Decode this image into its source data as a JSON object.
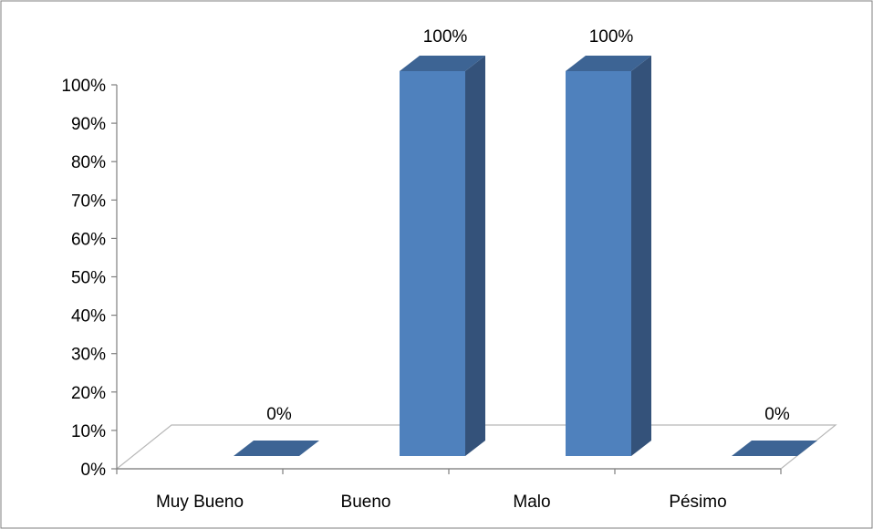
{
  "chart_data": {
    "type": "bar",
    "categories": [
      "Muy Bueno",
      "Bueno",
      "Malo",
      "Pésimo"
    ],
    "values": [
      0,
      100,
      100,
      0
    ],
    "data_labels": [
      "0%",
      "100%",
      "100%",
      "0%"
    ],
    "y_ticks": [
      "0%",
      "10%",
      "20%",
      "30%",
      "40%",
      "50%",
      "60%",
      "70%",
      "80%",
      "90%",
      "100%"
    ],
    "ylim": [
      0,
      100
    ],
    "title": "",
    "xlabel": "",
    "ylabel": "",
    "grid": false,
    "legend": "none",
    "style": "3d-column",
    "colors": {
      "bar_front": "#4f81bd",
      "bar_side": "#34527a",
      "bar_top": "#3d6494",
      "floor_stroke": "#b8b8b8",
      "frame_stroke": "#7f7f7f"
    }
  }
}
